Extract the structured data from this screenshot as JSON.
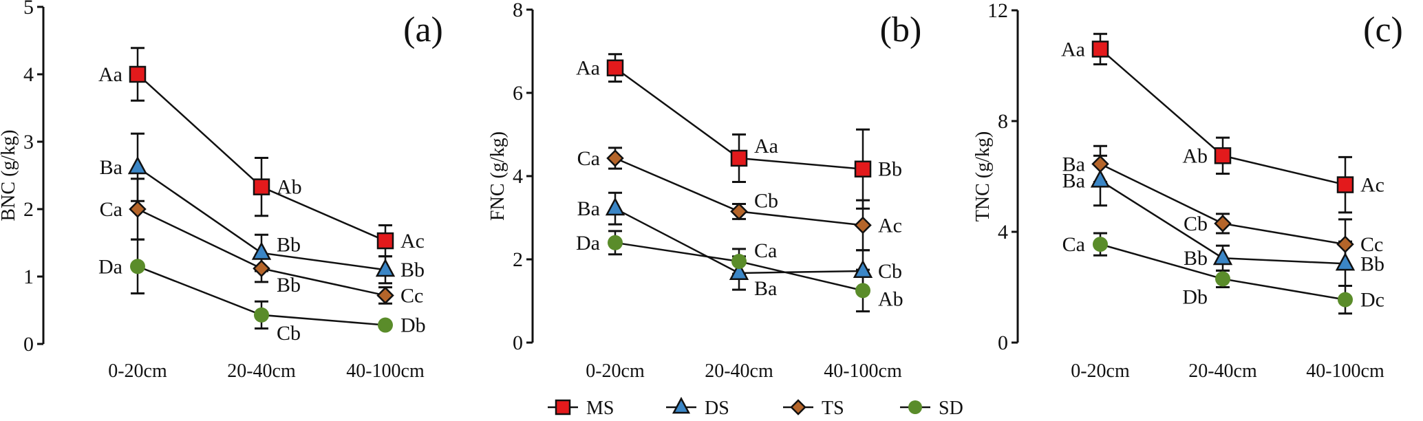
{
  "legend": [
    {
      "name": "MS",
      "marker": "square",
      "color": "#e31a1c"
    },
    {
      "name": "DS",
      "marker": "triangle",
      "color": "#3b86c6"
    },
    {
      "name": "TS",
      "marker": "diamond",
      "color": "#b5652a"
    },
    {
      "name": "SD",
      "marker": "circle",
      "color": "#5a8c2a"
    }
  ],
  "chart_data": [
    {
      "type": "line",
      "panel_label": "(a)",
      "ylabel": "BNC (g/kg)",
      "categories": [
        "0-20cm",
        "20-40cm",
        "40-100cm"
      ],
      "ylim": [
        0,
        5
      ],
      "yticks": [
        0,
        1,
        2,
        3,
        4,
        5
      ],
      "series": [
        {
          "name": "MS",
          "values": [
            4.0,
            2.33,
            1.53
          ],
          "errors": [
            0.39,
            0.43,
            0.23
          ],
          "labels": [
            "Aa",
            "Ab",
            "Ac"
          ]
        },
        {
          "name": "DS",
          "values": [
            2.62,
            1.35,
            1.1
          ],
          "errors": [
            0.5,
            0.27,
            0.2
          ],
          "labels": [
            "Ba",
            "Bb",
            "Bb"
          ]
        },
        {
          "name": "TS",
          "values": [
            2.0,
            1.12,
            0.72
          ],
          "errors": [
            0.45,
            0.2,
            0.12
          ],
          "labels": [
            "Ca",
            "Bb",
            "Cc"
          ]
        },
        {
          "name": "SD",
          "values": [
            1.15,
            0.43,
            0.28
          ],
          "errors": [
            0.4,
            0.2,
            0.02
          ],
          "labels": [
            "Da",
            "Cb",
            "Db"
          ]
        }
      ]
    },
    {
      "type": "line",
      "panel_label": "(b)",
      "ylabel": "FNC (g/kg)",
      "categories": [
        "0-20cm",
        "20-40cm",
        "40-100cm"
      ],
      "ylim": [
        0,
        8
      ],
      "yticks": [
        0,
        2,
        4,
        6,
        8
      ],
      "series": [
        {
          "name": "MS",
          "values": [
            6.6,
            4.43,
            4.17
          ],
          "errors": [
            0.33,
            0.57,
            0.95
          ],
          "labels": [
            "Aa",
            "Aa",
            "Bb"
          ]
        },
        {
          "name": "DS",
          "values": [
            3.22,
            1.67,
            1.72
          ],
          "errors": [
            0.38,
            0.4,
            0.5
          ],
          "labels": [
            "Ba",
            "Ba",
            "Cb"
          ]
        },
        {
          "name": "TS",
          "values": [
            4.43,
            3.15,
            2.82
          ],
          "errors": [
            0.25,
            0.18,
            0.6
          ],
          "labels": [
            "Ca",
            "Cb",
            "Ac"
          ]
        },
        {
          "name": "SD",
          "values": [
            2.4,
            1.95,
            1.25
          ],
          "errors": [
            0.28,
            0.3,
            0.5
          ],
          "labels": [
            "Da",
            "Ca",
            "Ab"
          ]
        }
      ]
    },
    {
      "type": "line",
      "panel_label": "(c)",
      "ylabel": "TNC (g/kg)",
      "categories": [
        "0-20cm",
        "20-40cm",
        "40-100cm"
      ],
      "ylim": [
        0,
        12
      ],
      "yticks": [
        0,
        4,
        8,
        12
      ],
      "series": [
        {
          "name": "MS",
          "values": [
            10.6,
            6.75,
            5.7
          ],
          "errors": [
            0.55,
            0.65,
            1.0
          ],
          "labels": [
            "Aa",
            "Ab",
            "Ac"
          ]
        },
        {
          "name": "DS",
          "values": [
            5.85,
            3.05,
            2.85
          ],
          "errors": [
            0.9,
            0.45,
            0.8
          ],
          "labels": [
            "Ba",
            "Bb",
            "Bb"
          ]
        },
        {
          "name": "TS",
          "values": [
            6.45,
            4.3,
            3.55
          ],
          "errors": [
            0.65,
            0.35,
            0.9
          ],
          "labels": [
            "Ba",
            "Cb",
            "Cc"
          ]
        },
        {
          "name": "SD",
          "values": [
            3.55,
            2.3,
            1.55
          ],
          "errors": [
            0.4,
            0.3,
            0.5
          ],
          "labels": [
            "Ca",
            "Db",
            "Dc"
          ]
        }
      ]
    }
  ]
}
